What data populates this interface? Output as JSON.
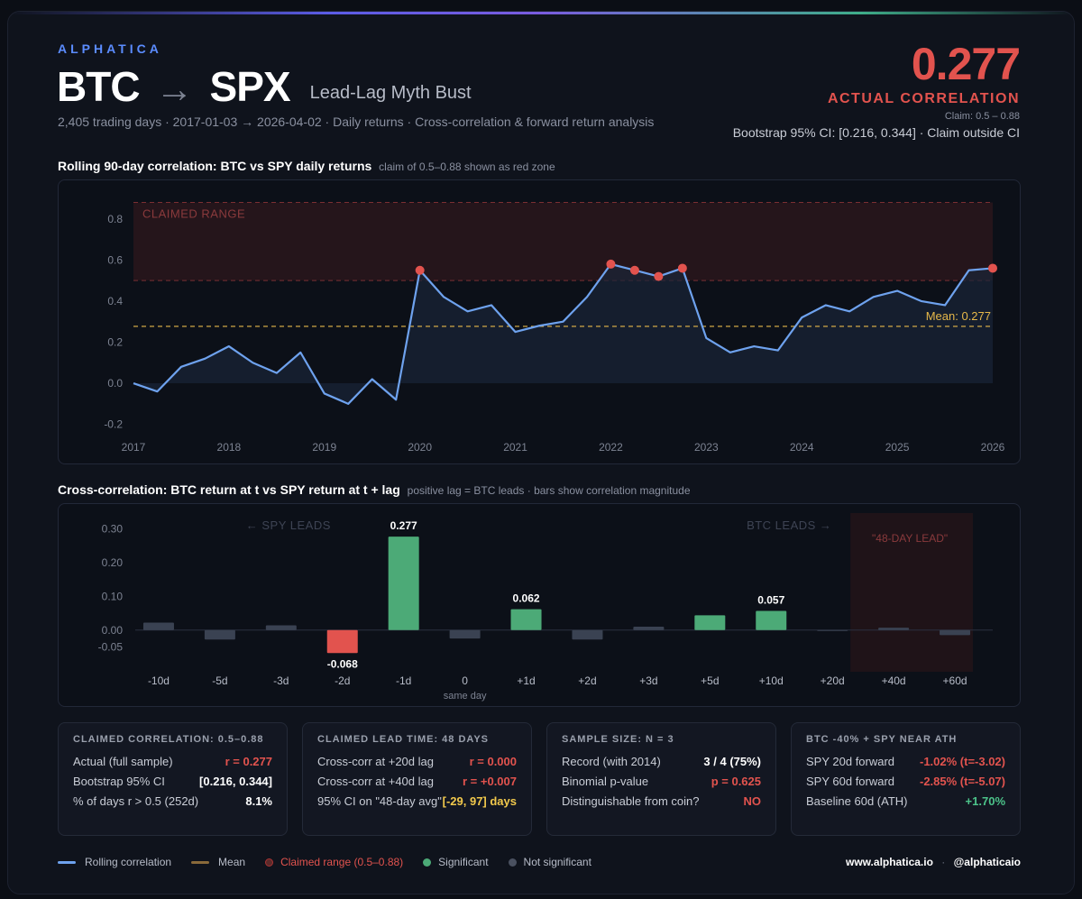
{
  "header": {
    "brand": "ALPHATICA",
    "title_left": "BTC",
    "title_arrow": "→",
    "title_right": "SPX",
    "subtitle": "Lead-Lag Myth Bust",
    "meta": "2,405 trading days · 2017-01-03 → 2026-04-02 · Daily returns · Cross-correlation & forward return analysis",
    "corr_value": "0.277",
    "corr_label": "ACTUAL CORRELATION",
    "claim": "Claim: 0.5 – 0.88",
    "ci": "Bootstrap 95% CI: [0.216, 0.344] · Claim outside CI"
  },
  "colors": {
    "accent_blue": "#5b8cff",
    "line": "#6ea2ee",
    "red": "#e2534e",
    "green": "#4caa77",
    "gray_bar": "#3a4252",
    "mean": "#e6b84a"
  },
  "chart_data": [
    {
      "type": "line",
      "title": "Rolling 90-day correlation: BTC vs SPY daily returns",
      "note": "claim of 0.5–0.88 shown as red zone",
      "ylim": [
        -0.25,
        0.9
      ],
      "yticks": [
        -0.2,
        0.0,
        0.2,
        0.4,
        0.6,
        0.8
      ],
      "xlim": [
        2017,
        2026
      ],
      "xticks": [
        "2017",
        "2018",
        "2019",
        "2020",
        "2021",
        "2022",
        "2023",
        "2024",
        "2025",
        "2026"
      ],
      "claimed_range": [
        0.5,
        0.88
      ],
      "claimed_label": "CLAIMED RANGE",
      "mean": 0.277,
      "mean_label": "Mean: 0.277",
      "series": [
        {
          "x": [
            2017.0,
            2017.25,
            2017.5,
            2017.75,
            2018.0,
            2018.25,
            2018.5,
            2018.75,
            2019.0,
            2019.25,
            2019.5,
            2019.75,
            2020.0,
            2020.25,
            2020.5,
            2020.75,
            2021.0,
            2021.25,
            2021.5,
            2021.75,
            2022.0,
            2022.25,
            2022.5,
            2022.75,
            2023.0,
            2023.25,
            2023.5,
            2023.75,
            2024.0,
            2024.25,
            2024.5,
            2024.75,
            2025.0,
            2025.25,
            2025.5,
            2025.75,
            2026.0,
            2026.25
          ],
          "y": [
            0.0,
            -0.04,
            0.08,
            0.12,
            0.18,
            0.1,
            0.05,
            0.15,
            -0.05,
            -0.1,
            0.02,
            -0.08,
            0.55,
            0.42,
            0.35,
            0.38,
            0.25,
            0.28,
            0.3,
            0.42,
            0.58,
            0.55,
            0.52,
            0.56,
            0.22,
            0.15,
            0.18,
            0.16,
            0.32,
            0.38,
            0.35,
            0.42,
            0.45,
            0.4,
            0.38,
            0.55,
            0.56,
            0.56
          ]
        }
      ],
      "highlight_x": [
        2020.0,
        2022.0,
        2022.25,
        2022.5,
        2022.75,
        2026.0
      ]
    },
    {
      "type": "bar",
      "title": "Cross-correlation: BTC return at t vs SPY return at t + lag",
      "note": "positive lag = BTC leads · bars show correlation magnitude",
      "ylim": [
        -0.07,
        0.32
      ],
      "ytick_labels": [
        "0.30",
        "0.20",
        "0.10",
        "0.00",
        "-0.05"
      ],
      "ytick_values": [
        0.3,
        0.2,
        0.1,
        0.0,
        -0.05
      ],
      "categories": [
        "-10d",
        "-5d",
        "-3d",
        "-2d",
        "-1d",
        "0",
        "+1d",
        "+2d",
        "+3d",
        "+5d",
        "+10d",
        "+20d",
        "+40d",
        "+60d"
      ],
      "values": [
        0.022,
        -0.028,
        0.014,
        -0.068,
        0.277,
        -0.025,
        0.062,
        -0.028,
        0.01,
        0.044,
        0.057,
        0.0,
        0.007,
        -0.015
      ],
      "significance": [
        "ns",
        "ns",
        "ns",
        "neg",
        "sig",
        "ns",
        "sig",
        "ns",
        "ns",
        "sig",
        "sig",
        "ns",
        "ns",
        "ns"
      ],
      "value_labels": [
        "",
        "",
        "",
        "-0.068",
        "0.277",
        "",
        "0.062",
        "",
        "",
        "",
        "0.057",
        "",
        "",
        ""
      ],
      "zero_sublabel": "same day",
      "spy_leads": "← SPY LEADS",
      "btc_leads": "BTC LEADS →",
      "lead_zone_label": "\"48-DAY LEAD\""
    }
  ],
  "cards": [
    {
      "header": "CLAIMED CORRELATION: 0.5–0.88",
      "rows": [
        {
          "label": "Actual (full sample)",
          "value": "r = 0.277"
        },
        {
          "label": "Bootstrap 95% CI",
          "value": "[0.216, 0.344]"
        },
        {
          "label": "% of days r > 0.5 (252d)",
          "value": "8.1%"
        }
      ]
    },
    {
      "header": "CLAIMED LEAD TIME: 48 DAYS",
      "rows": [
        {
          "label": "Cross-corr at +20d lag",
          "value": "r = 0.000"
        },
        {
          "label": "Cross-corr at +40d lag",
          "value": "r = +0.007"
        },
        {
          "label": "95% CI on \"48-day avg\"",
          "value": "[-29, 97] days"
        }
      ]
    },
    {
      "header": "SAMPLE SIZE: N = 3",
      "rows": [
        {
          "label": "Record (with 2014)",
          "value": "3 / 4 (75%)"
        },
        {
          "label": "Binomial p-value",
          "value": "p = 0.625"
        },
        {
          "label": "Distinguishable from coin?",
          "value": "NO"
        }
      ]
    },
    {
      "header": "BTC -40% + SPY NEAR ATH",
      "rows": [
        {
          "label": "SPY 20d forward",
          "value": "-1.02% (t=-3.02)"
        },
        {
          "label": "SPY 60d forward",
          "value": "-2.85% (t=-5.07)"
        },
        {
          "label": "Baseline 60d (ATH)",
          "value": "+1.70%"
        }
      ]
    }
  ],
  "legend": {
    "rolling": "Rolling correlation",
    "mean": "Mean",
    "claimed": "Claimed range (0.5–0.88)",
    "significant": "Significant",
    "not_significant": "Not significant"
  },
  "footer": {
    "site": "www.alphatica.io",
    "sep": "·",
    "handle": "@alphaticaio"
  }
}
